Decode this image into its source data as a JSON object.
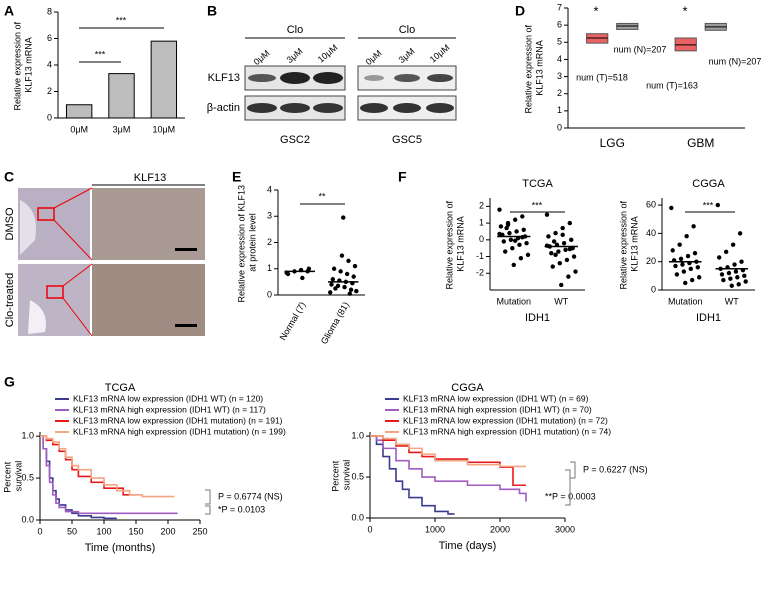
{
  "chart_data": [
    {
      "type": "bar",
      "panel": "A",
      "y_label": "Relative expression of KLF13 mRNA",
      "categories": [
        "0μM",
        "3μM",
        "10μM"
      ],
      "values": [
        1.0,
        3.35,
        5.8
      ],
      "color": "#bdbdbd",
      "ylim": [
        0,
        8
      ],
      "yticks": [
        0,
        2,
        4,
        6,
        8
      ],
      "annotations": [
        "***",
        "***"
      ]
    },
    {
      "type": "box",
      "panel": "D",
      "y_label": "Relative expression of KLF13 mRNA",
      "categories": [
        "LGG",
        "GBM"
      ],
      "ylim": [
        0,
        7
      ],
      "yticks": [
        0,
        1,
        2,
        3,
        4,
        5,
        6,
        7
      ],
      "series": [
        {
          "color": "#e8474a",
          "q1": [
            4.95,
            4.5
          ],
          "median": [
            5.25,
            4.85
          ],
          "q3": [
            5.5,
            5.25
          ]
        },
        {
          "color": "#8c8c8c",
          "q1": [
            5.75,
            5.7
          ],
          "median": [
            5.95,
            5.9
          ],
          "q3": [
            6.1,
            6.1
          ]
        }
      ],
      "annotations": [
        "*",
        "*",
        "num (T)=518",
        "num (N)=207",
        "num (T)=163",
        "num (N)=207"
      ]
    },
    {
      "type": "dot",
      "panel": "E",
      "y_label": "Relative expression of KLF13 at protein level",
      "categories": [
        "Normal (7)",
        "Glioma (81)"
      ],
      "values": [
        0.9,
        0.5
      ],
      "points": [
        [
          0.85,
          0.9,
          0.95,
          0.9,
          0.8,
          1.0,
          0.65
        ],
        [
          0.1,
          0.2,
          0.3,
          0.35,
          0.4,
          0.45,
          0.5,
          0.55,
          0.6,
          0.7,
          0.8,
          0.9,
          1.0,
          1.1,
          1.3,
          1.5,
          0.25,
          0.15,
          0.05,
          2.95
        ]
      ],
      "ylim": [
        0,
        4
      ],
      "yticks": [
        0,
        1,
        2,
        3,
        4
      ],
      "annotations": [
        "**"
      ]
    },
    {
      "type": "dot",
      "panel": "F",
      "title": "TCGA",
      "y_label": "Relative expression of KLF13 mRNA",
      "x_label": "IDH1",
      "categories": [
        "Mutation",
        "WT"
      ],
      "values": [
        0.2,
        -0.4
      ],
      "points": [
        [
          1.8,
          1.4,
          1.2,
          1.0,
          0.8,
          0.6,
          0.5,
          0.4,
          0.3,
          0.2,
          0.1,
          0.0,
          -0.1,
          -0.2,
          -0.3,
          -0.5,
          -0.7,
          -0.9,
          -1.1,
          -1.5,
          0.7,
          0.35,
          0.15,
          -0.05,
          0.9
        ],
        [
          1.5,
          1.0,
          0.7,
          0.4,
          0.2,
          0.0,
          -0.2,
          -0.3,
          -0.4,
          -0.5,
          -0.6,
          -0.7,
          -0.8,
          -1.0,
          -1.2,
          -1.4,
          -1.6,
          -1.9,
          -2.2,
          -2.7,
          -0.1,
          -0.35,
          -0.55,
          0.3,
          -0.9
        ]
      ],
      "ylim": [
        -3,
        2.5
      ],
      "yticks": [
        -2,
        -1,
        0,
        1,
        2
      ],
      "annotations": [
        "***"
      ]
    },
    {
      "type": "dot",
      "panel": "",
      "title": "CGGA",
      "y_label": "Relative expression of KLF13 mRNA",
      "x_label": "IDH1",
      "categories": [
        "Mutation",
        "WT"
      ],
      "values": [
        20,
        15
      ],
      "points": [
        [
          58,
          45,
          38,
          32,
          28,
          26,
          24,
          22,
          21,
          20,
          19,
          18,
          17,
          16,
          15,
          13,
          11,
          9,
          7,
          5
        ],
        [
          60,
          40,
          32,
          27,
          23,
          20,
          18,
          16,
          15,
          14,
          13,
          12,
          11,
          10,
          9,
          8,
          7,
          6,
          4,
          3
        ]
      ],
      "ylim": [
        0,
        65
      ],
      "yticks": [
        0,
        20,
        40,
        60
      ],
      "annotations": [
        "***"
      ]
    },
    {
      "type": "line",
      "panel": "G",
      "title": "TCGA",
      "y_label": "Percent survival",
      "x_label": "Time (months)",
      "xlim": [
        0,
        250
      ],
      "xticks": [
        0,
        50,
        100,
        150,
        200,
        250
      ],
      "ylim": [
        0,
        1.05
      ],
      "yticks": [
        {
          "value": 0,
          "label": "0.0"
        },
        {
          "value": 0.5,
          "label": "0.5"
        },
        {
          "value": 1,
          "label": "1.0"
        }
      ],
      "series": [
        {
          "name": "KLF13 mRNA low expression (IDH1 WT) (n = 120)",
          "color": "#3b3b8f",
          "x": [
            0,
            5,
            10,
            15,
            20,
            25,
            30,
            40,
            50,
            60,
            80,
            100,
            120
          ],
          "values": [
            1,
            0.85,
            0.7,
            0.5,
            0.35,
            0.25,
            0.18,
            0.12,
            0.08,
            0.05,
            0.03,
            0.02,
            0.02
          ]
        },
        {
          "name": "KLF13 mRNA high expression (IDH1 WT) (n = 117)",
          "color": "#a05cc0",
          "x": [
            0,
            5,
            10,
            15,
            20,
            25,
            30,
            40,
            60,
            100,
            140,
            200,
            215
          ],
          "values": [
            1,
            0.85,
            0.65,
            0.45,
            0.3,
            0.2,
            0.15,
            0.1,
            0.08,
            0.08,
            0.08,
            0.08,
            0.08
          ]
        },
        {
          "name": "KLF13 mRNA low expression (IDH1 mutation) (n = 191)",
          "color": "#e41a1c",
          "x": [
            0,
            10,
            20,
            30,
            40,
            50,
            60,
            80,
            100,
            130,
            150
          ],
          "values": [
            1,
            0.95,
            0.9,
            0.82,
            0.72,
            0.6,
            0.52,
            0.45,
            0.38,
            0.3,
            0.3
          ]
        },
        {
          "name": "KLF13 mRNA high expression (IDH1 mutation) (n = 199)",
          "color": "#f4a582",
          "x": [
            0,
            10,
            20,
            30,
            40,
            50,
            60,
            80,
            100,
            120,
            140,
            160,
            180,
            210
          ],
          "values": [
            1,
            0.97,
            0.93,
            0.85,
            0.75,
            0.65,
            0.6,
            0.5,
            0.42,
            0.35,
            0.3,
            0.28,
            0.28,
            0.28
          ]
        }
      ],
      "annotations": [
        "P = 0.6774 (NS)",
        "*P = 0.0103"
      ]
    },
    {
      "type": "line",
      "panel": "",
      "title": "CGGA",
      "y_label": "Percent survival",
      "x_label": "Time (days)",
      "xlim": [
        0,
        3000
      ],
      "xticks": [
        0,
        1000,
        2000,
        3000
      ],
      "ylim": [
        0,
        1.05
      ],
      "yticks": [
        {
          "value": 0,
          "label": "0.0"
        },
        {
          "value": 0.5,
          "label": "0.5"
        },
        {
          "value": 1,
          "label": "1.0"
        }
      ],
      "series": [
        {
          "name": "KLF13 mRNA low expression (IDH1 WT) (n = 69)",
          "color": "#3b3b8f",
          "x": [
            0,
            100,
            200,
            300,
            400,
            500,
            600,
            800,
            1000,
            1200,
            1300
          ],
          "values": [
            1,
            0.9,
            0.75,
            0.6,
            0.45,
            0.35,
            0.25,
            0.15,
            0.08,
            0.05,
            0.05
          ]
        },
        {
          "name": "KLF13 mRNA high expression (IDH1 WT) (n = 70)",
          "color": "#a05cc0",
          "x": [
            0,
            100,
            200,
            400,
            600,
            800,
            1000,
            1500,
            2000,
            2300,
            2400
          ],
          "values": [
            1,
            0.95,
            0.85,
            0.7,
            0.6,
            0.5,
            0.45,
            0.4,
            0.35,
            0.3,
            0.2
          ]
        },
        {
          "name": "KLF13 mRNA low expression (IDH1 mutation) (n = 72)",
          "color": "#e41a1c",
          "x": [
            0,
            200,
            400,
            600,
            800,
            1000,
            1500,
            2000,
            2200,
            2400
          ],
          "values": [
            1,
            0.95,
            0.88,
            0.8,
            0.75,
            0.72,
            0.68,
            0.62,
            0.4,
            0.4
          ]
        },
        {
          "name": "KLF13 mRNA high expression (IDH1 mutation) (n = 74)",
          "color": "#f4a582",
          "x": [
            0,
            200,
            400,
            600,
            800,
            1000,
            1500,
            2000,
            2400
          ],
          "values": [
            1,
            0.97,
            0.9,
            0.85,
            0.78,
            0.7,
            0.65,
            0.63,
            0.63
          ]
        }
      ],
      "annotations": [
        "P = 0.6227 (NS)",
        "**P = 0.0003"
      ]
    }
  ],
  "blot": {
    "panel": "B",
    "groups": [
      "Clo",
      "Clo"
    ],
    "lanes": [
      "0μM",
      "3μM",
      "10μM",
      "0μM",
      "3μM",
      "10μM"
    ],
    "rows": [
      "KLF13",
      "β-actin"
    ],
    "cells": [
      "GSC2",
      "GSC5"
    ]
  },
  "histology": {
    "panel": "C",
    "title": "KLF13",
    "rows": [
      "DMSO",
      "Clo-treated"
    ]
  }
}
